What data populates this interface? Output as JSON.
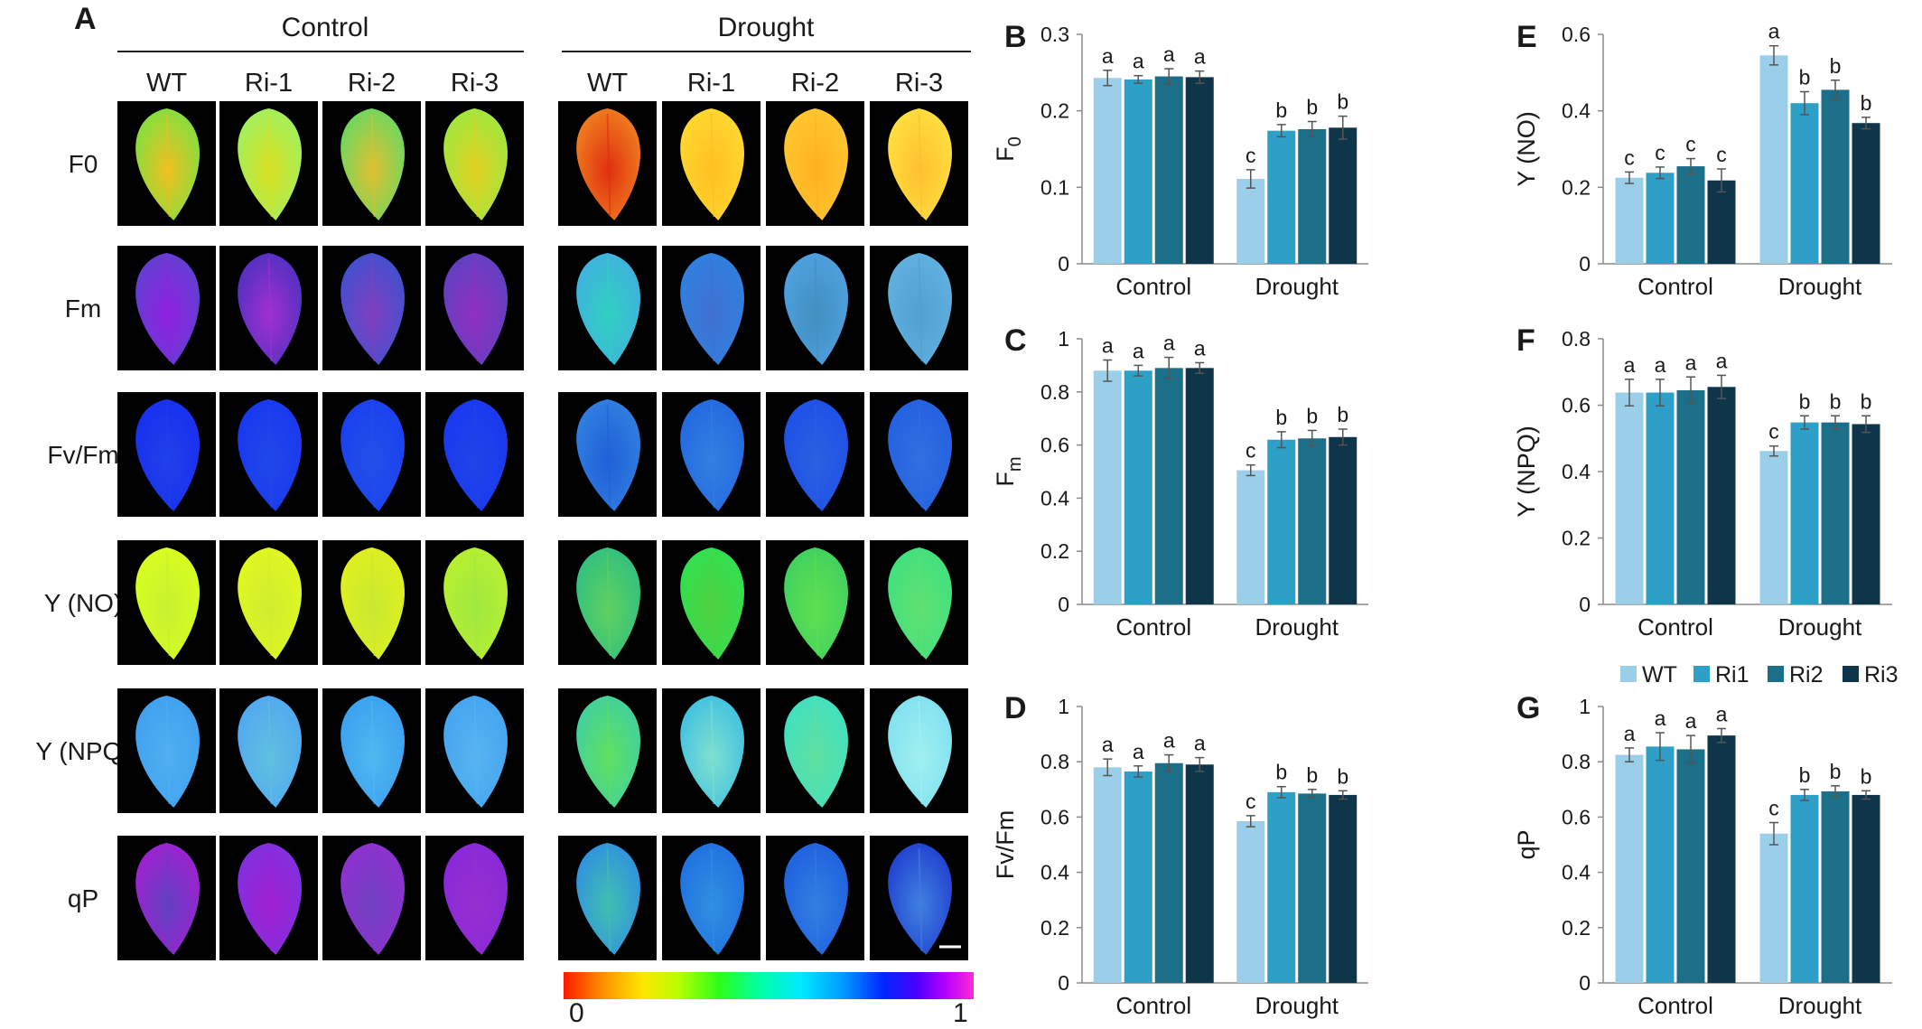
{
  "panel_a": {
    "letter": "A",
    "group_headers": [
      "Control",
      "Drought"
    ],
    "genotypes": [
      "WT",
      "Ri-1",
      "Ri-2",
      "Ri-3"
    ],
    "row_labels": [
      "F0",
      "Fm",
      "Fv/Fm",
      "Y (NO)",
      "Y (NPQ)",
      "qP"
    ],
    "colorscale": {
      "min_label": "0",
      "max_label": "1",
      "colors": [
        "#ff1a00",
        "#ff8a00",
        "#ffe600",
        "#b8ff00",
        "#2aff1a",
        "#00ffa8",
        "#00e8ff",
        "#009cff",
        "#0026ff",
        "#4a00ff",
        "#b400ff",
        "#ff2ad6"
      ]
    },
    "leaf_colors": [
      [
        [
          "#7fe040",
          "#f0c020"
        ],
        [
          "#9ff060",
          "#d9e020"
        ],
        [
          "#6ad860",
          "#e0c030"
        ],
        [
          "#9fe840",
          "#e0d020"
        ],
        [
          "#f08020",
          "#e03010"
        ],
        [
          "#ffd830",
          "#ffc020"
        ],
        [
          "#ffc830",
          "#ffb020"
        ],
        [
          "#ffe040",
          "#ffc030"
        ]
      ],
      [
        [
          "#6040d0",
          "#9020e0"
        ],
        [
          "#5030c0",
          "#a030d0"
        ],
        [
          "#4050d0",
          "#8040c0"
        ],
        [
          "#6040c0",
          "#9030c0"
        ],
        [
          "#40b0e0",
          "#30d0c0"
        ],
        [
          "#3080e0",
          "#4070d0"
        ],
        [
          "#50a0e0",
          "#4090c0"
        ],
        [
          "#60b0e0",
          "#50a0d0"
        ]
      ],
      [
        [
          "#1830f0",
          "#2040e8"
        ],
        [
          "#1838f0",
          "#2048e8"
        ],
        [
          "#1a40f0",
          "#2250e8"
        ],
        [
          "#1838f0",
          "#2044e8"
        ],
        [
          "#3080e0",
          "#2060d8"
        ],
        [
          "#2468e0",
          "#3080e0"
        ],
        [
          "#1e50e8",
          "#2a60e0"
        ],
        [
          "#2460e0",
          "#3070e0"
        ]
      ],
      [
        [
          "#d8ff20",
          "#c8f030"
        ],
        [
          "#e0f820",
          "#d0ec30"
        ],
        [
          "#e0f020",
          "#c8e830"
        ],
        [
          "#b8f030",
          "#a0e840"
        ],
        [
          "#30c080",
          "#60d060"
        ],
        [
          "#30e050",
          "#50d040"
        ],
        [
          "#40d060",
          "#60e050"
        ],
        [
          "#40e080",
          "#60e070"
        ]
      ],
      [
        [
          "#40a0f0",
          "#50b0f0"
        ],
        [
          "#50a8f0",
          "#60c0e0"
        ],
        [
          "#3ca0f0",
          "#50b8f0"
        ],
        [
          "#44a4f0",
          "#58b4f0"
        ],
        [
          "#40d0a0",
          "#60e060"
        ],
        [
          "#40c0e0",
          "#80e0d0"
        ],
        [
          "#40e0c0",
          "#60e0a0"
        ],
        [
          "#80e0f0",
          "#a0f0f0"
        ]
      ],
      [
        [
          "#a020d0",
          "#6040c0"
        ],
        [
          "#8030e0",
          "#a020d0"
        ],
        [
          "#9030d0",
          "#7040c0"
        ],
        [
          "#8828d8",
          "#9830d0"
        ],
        [
          "#3090e0",
          "#40c0b0"
        ],
        [
          "#2070e0",
          "#3090e0"
        ],
        [
          "#2060e0",
          "#3080e0"
        ],
        [
          "#2040d0",
          "#4080e0"
        ]
      ]
    ]
  },
  "chart_data": [
    {
      "type": "bar",
      "panel": "B",
      "ylabel": "F",
      "ylabel_sub": "0",
      "categories": [
        "Control",
        "Drought"
      ],
      "series": [
        {
          "name": "WT",
          "values": [
            0.243,
            0.111
          ]
        },
        {
          "name": "Ri1",
          "values": [
            0.241,
            0.174
          ]
        },
        {
          "name": "Ri2",
          "values": [
            0.245,
            0.176
          ]
        },
        {
          "name": "Ri3",
          "values": [
            0.244,
            0.178
          ]
        }
      ],
      "errors": [
        [
          0.01,
          0.012
        ],
        [
          0.005,
          0.008
        ],
        [
          0.01,
          0.01
        ],
        [
          0.008,
          0.015
        ]
      ],
      "letters": [
        [
          "a",
          "c"
        ],
        [
          "a",
          "b"
        ],
        [
          "a",
          "b"
        ],
        [
          "a",
          "b"
        ]
      ],
      "ylim": [
        0,
        0.3
      ],
      "yticks": [
        "0",
        "0.1",
        "0.2",
        "0.3"
      ],
      "legend": "none",
      "grid": false
    },
    {
      "type": "bar",
      "panel": "C",
      "ylabel": "F",
      "ylabel_sub": "m",
      "categories": [
        "Control",
        "Drought"
      ],
      "series": [
        {
          "name": "WT",
          "values": [
            0.88,
            0.505
          ]
        },
        {
          "name": "Ri1",
          "values": [
            0.88,
            0.62
          ]
        },
        {
          "name": "Ri2",
          "values": [
            0.89,
            0.625
          ]
        },
        {
          "name": "Ri3",
          "values": [
            0.89,
            0.63
          ]
        }
      ],
      "errors": [
        [
          0.04,
          0.02
        ],
        [
          0.02,
          0.03
        ],
        [
          0.04,
          0.03
        ],
        [
          0.02,
          0.03
        ]
      ],
      "letters": [
        [
          "a",
          "c"
        ],
        [
          "a",
          "b"
        ],
        [
          "a",
          "b"
        ],
        [
          "a",
          "b"
        ]
      ],
      "ylim": [
        0,
        1
      ],
      "yticks": [
        "0",
        "0.2",
        "0.4",
        "0.6",
        "0.8",
        "1"
      ],
      "legend": "none",
      "grid": false
    },
    {
      "type": "bar",
      "panel": "D",
      "ylabel": "Fv/Fm",
      "ylabel_sub": "",
      "categories": [
        "Control",
        "Drought"
      ],
      "series": [
        {
          "name": "WT",
          "values": [
            0.78,
            0.585
          ]
        },
        {
          "name": "Ri1",
          "values": [
            0.765,
            0.69
          ]
        },
        {
          "name": "Ri2",
          "values": [
            0.795,
            0.685
          ]
        },
        {
          "name": "Ri3",
          "values": [
            0.79,
            0.68
          ]
        }
      ],
      "errors": [
        [
          0.03,
          0.02
        ],
        [
          0.02,
          0.02
        ],
        [
          0.03,
          0.015
        ],
        [
          0.025,
          0.015
        ]
      ],
      "letters": [
        [
          "a",
          "c"
        ],
        [
          "a",
          "b"
        ],
        [
          "a",
          "b"
        ],
        [
          "a",
          "b"
        ]
      ],
      "ylim": [
        0,
        1
      ],
      "yticks": [
        "0",
        "0.2",
        "0.4",
        "0.6",
        "0.8",
        "1"
      ],
      "legend": "none",
      "grid": false
    },
    {
      "type": "bar",
      "panel": "E",
      "ylabel": "Y (NO)",
      "ylabel_sub": "",
      "categories": [
        "Control",
        "Drought"
      ],
      "series": [
        {
          "name": "WT",
          "values": [
            0.225,
            0.545
          ]
        },
        {
          "name": "Ri1",
          "values": [
            0.238,
            0.42
          ]
        },
        {
          "name": "Ri2",
          "values": [
            0.255,
            0.455
          ]
        },
        {
          "name": "Ri3",
          "values": [
            0.218,
            0.368
          ]
        }
      ],
      "errors": [
        [
          0.015,
          0.025
        ],
        [
          0.015,
          0.03
        ],
        [
          0.02,
          0.025
        ],
        [
          0.03,
          0.015
        ]
      ],
      "letters": [
        [
          "c",
          "a"
        ],
        [
          "c",
          "b"
        ],
        [
          "c",
          "b"
        ],
        [
          "c",
          "b"
        ]
      ],
      "ylim": [
        0,
        0.6
      ],
      "yticks": [
        "0",
        "0.2",
        "0.4",
        "0.6"
      ],
      "legend": "none",
      "grid": false
    },
    {
      "type": "bar",
      "panel": "F",
      "ylabel": "Y (NPQ)",
      "ylabel_sub": "",
      "categories": [
        "Control",
        "Drought"
      ],
      "series": [
        {
          "name": "WT",
          "values": [
            0.638,
            0.462
          ]
        },
        {
          "name": "Ri1",
          "values": [
            0.638,
            0.548
          ]
        },
        {
          "name": "Ri2",
          "values": [
            0.645,
            0.548
          ]
        },
        {
          "name": "Ri3",
          "values": [
            0.655,
            0.543
          ]
        }
      ],
      "errors": [
        [
          0.04,
          0.015
        ],
        [
          0.04,
          0.02
        ],
        [
          0.04,
          0.02
        ],
        [
          0.035,
          0.025
        ]
      ],
      "letters": [
        [
          "a",
          "c"
        ],
        [
          "a",
          "b"
        ],
        [
          "a",
          "b"
        ],
        [
          "a",
          "b"
        ]
      ],
      "ylim": [
        0,
        0.8
      ],
      "yticks": [
        "0",
        "0.2",
        "0.4",
        "0.6",
        "0.8"
      ],
      "legend": "none",
      "grid": false
    },
    {
      "type": "bar",
      "panel": "G",
      "ylabel": "qP",
      "ylabel_sub": "",
      "categories": [
        "Control",
        "Drought"
      ],
      "series": [
        {
          "name": "WT",
          "values": [
            0.825,
            0.54
          ]
        },
        {
          "name": "Ri1",
          "values": [
            0.855,
            0.68
          ]
        },
        {
          "name": "Ri2",
          "values": [
            0.845,
            0.693
          ]
        },
        {
          "name": "Ri3",
          "values": [
            0.895,
            0.68
          ]
        }
      ],
      "errors": [
        [
          0.025,
          0.04
        ],
        [
          0.05,
          0.02
        ],
        [
          0.05,
          0.02
        ],
        [
          0.025,
          0.015
        ]
      ],
      "letters": [
        [
          "a",
          "c"
        ],
        [
          "a",
          "b"
        ],
        [
          "a",
          "b"
        ],
        [
          "a",
          "b"
        ]
      ],
      "ylim": [
        0,
        1
      ],
      "yticks": [
        "0",
        "0.2",
        "0.4",
        "0.6",
        "0.8",
        "1"
      ],
      "legend": "top-right",
      "grid": false
    }
  ],
  "series_colors": {
    "WT": "#9bcfe9",
    "Ri1": "#2e9fc6",
    "Ri2": "#1b6f88",
    "Ri3": "#0e3549"
  },
  "legend": {
    "items": [
      "WT",
      "Ri1",
      "Ri2",
      "Ri3"
    ]
  }
}
